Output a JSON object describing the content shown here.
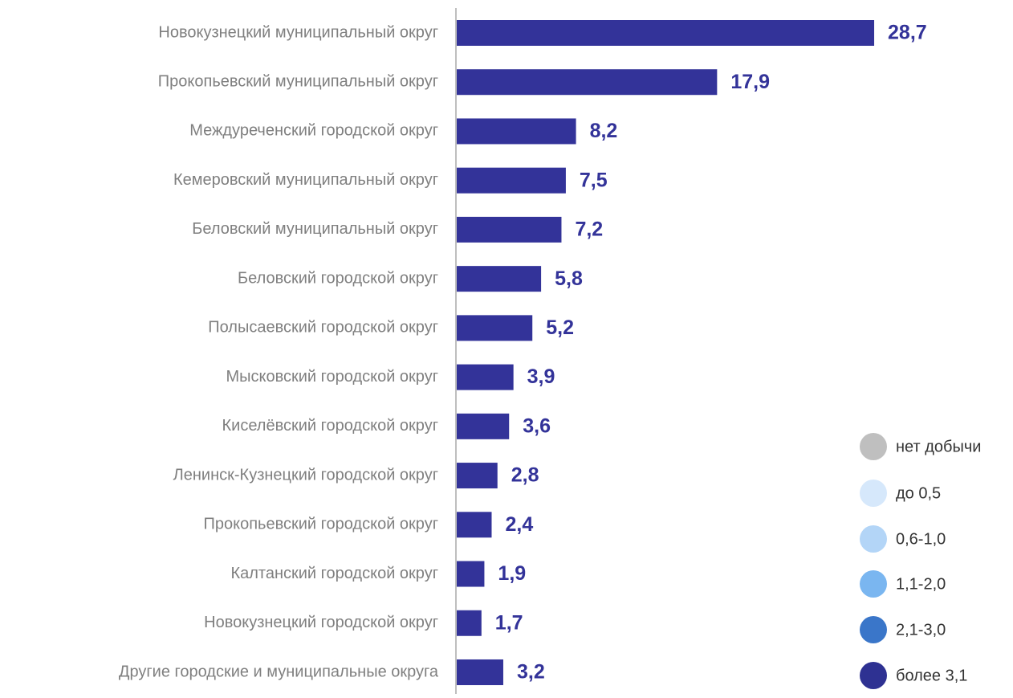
{
  "chart_data": {
    "type": "bar",
    "orientation": "horizontal",
    "categories": [
      "Новокузнецкий муниципальный округ",
      "Прокопьевский муниципальный округ",
      "Междуреченский городской округ",
      "Кемеровский муниципальный округ",
      "Беловский муниципальный округ",
      "Беловский городской округ",
      "Полысаевский городской округ",
      "Мысковский городской округ",
      "Киселёвский городской округ",
      "Ленинск-Кузнецкий городской округ",
      "Прокопьевский городской округ",
      "Калтанский городской округ",
      "Новокузнецкий городской округ",
      "Другие городские и муниципальные округа"
    ],
    "values": [
      28.7,
      17.9,
      8.2,
      7.5,
      7.2,
      5.8,
      5.2,
      3.9,
      3.6,
      2.8,
      2.4,
      1.9,
      1.7,
      3.2
    ],
    "value_labels": [
      "28,7",
      "17,9",
      "8,2",
      "7,5",
      "7,2",
      "5,8",
      "5,2",
      "3,9",
      "3,6",
      "2,8",
      "2,4",
      "1,9",
      "1,7",
      "3,2"
    ],
    "color": "#333399",
    "legend_items": [
      {
        "label": "нет добычи",
        "color": "#bfbfbf"
      },
      {
        "label": "до 0,5",
        "color": "#d6e8fb"
      },
      {
        "label": "0,6-1,0",
        "color": "#b3d5f7"
      },
      {
        "label": "1,1-2,0",
        "color": "#7ab6f0"
      },
      {
        "label": "2,1-3,0",
        "color": "#3a76c9"
      },
      {
        "label": "более 3,1",
        "color": "#2e3192"
      }
    ]
  }
}
